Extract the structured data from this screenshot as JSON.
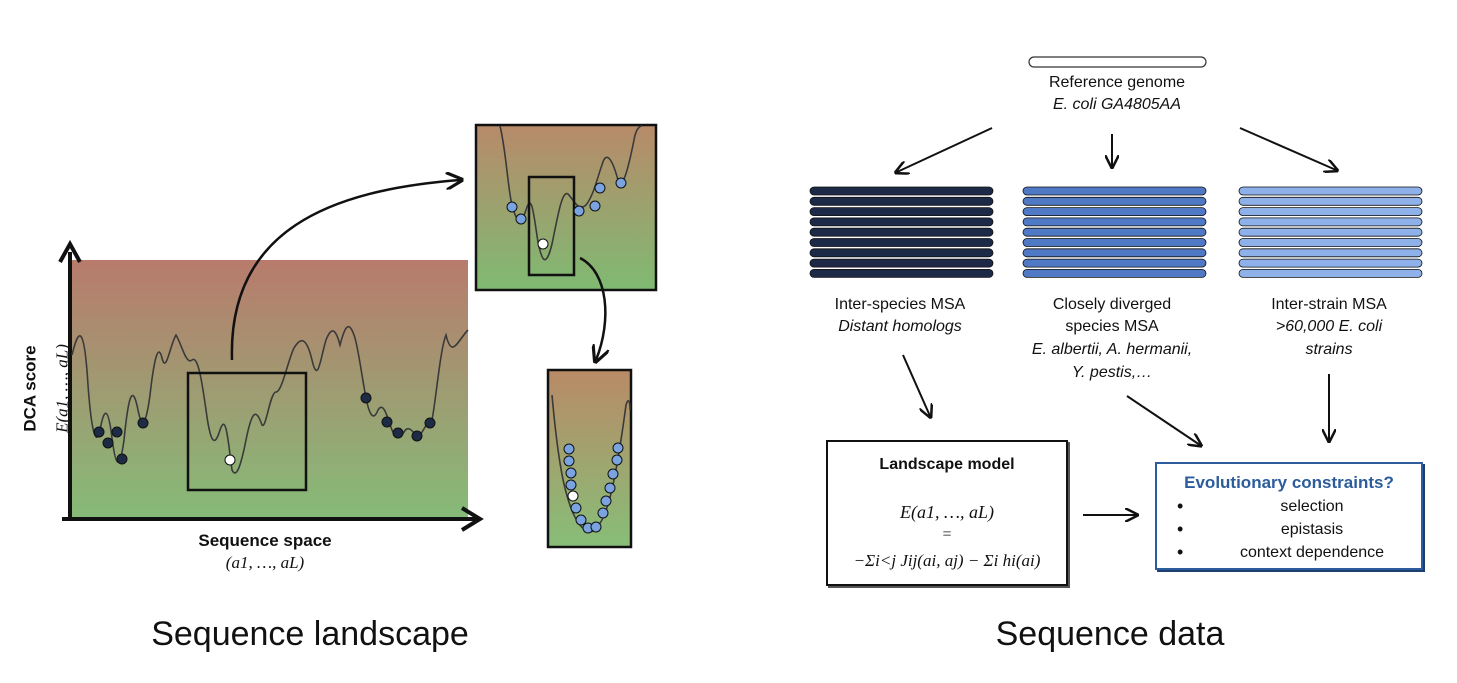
{
  "panels": {
    "left_caption": "Sequence landscape",
    "right_caption": "Sequence data"
  },
  "landscape": {
    "y_axis_title": "DCA score",
    "y_axis_formula": "E(a1, …, aL)",
    "x_axis_title": "Sequence space",
    "x_axis_formula": "(a1, …, aL)",
    "gradient_top_color": "#b87b6c",
    "gradient_bottom_color": "#86bb78",
    "point_dark_color": "#1e2b45",
    "point_blue_color": "#7aa3e0",
    "point_white_color": "#ffffff"
  },
  "data_flow": {
    "reference": {
      "title": "Reference genome",
      "strain": "E. coli GA4805AA"
    },
    "msa": [
      {
        "line1": "Inter-species MSA",
        "line2": "Distant homologs",
        "line3": "",
        "color": "#1c2a48"
      },
      {
        "line1": "Closely diverged",
        "line2": "species MSA",
        "line3": "E. albertii, A. hermanii,",
        "line4": "Y. pestis,…",
        "color": "#4f79c5"
      },
      {
        "line1": "Inter-strain MSA",
        "line2": ">60,000 E. coli",
        "line3": "strains",
        "color": "#8eb1ea"
      }
    ],
    "model": {
      "title": "Landscape model",
      "lhs": "E(a1, …, aL)",
      "eq": "=",
      "rhs": "−Σi<j Jij(ai, aj) − Σi hi(ai)"
    },
    "constraints": {
      "title": "Evolutionary constraints?",
      "title_color": "#2c5c9c",
      "items": [
        "selection",
        "epistasis",
        "context dependence"
      ]
    }
  }
}
